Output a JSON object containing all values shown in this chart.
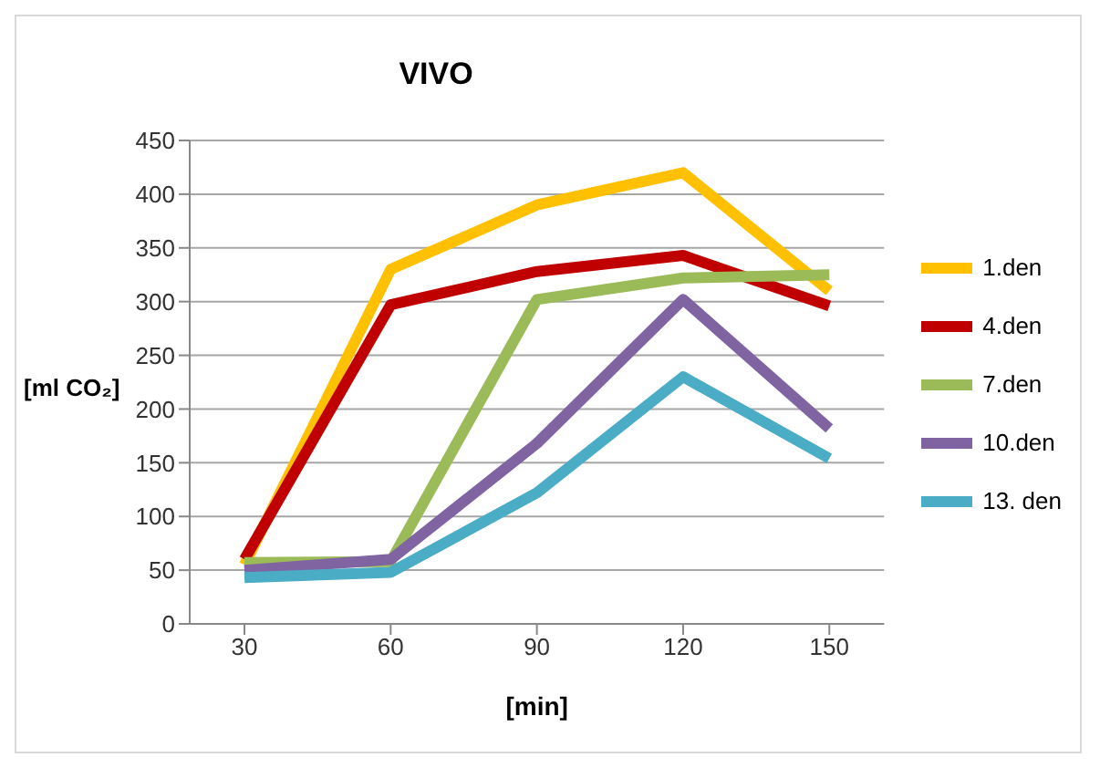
{
  "chart_data": {
    "type": "line",
    "title": "VIVO",
    "xlabel": "[min]",
    "ylabel": "[ml CO₂]",
    "categories": [
      "30",
      "60",
      "90",
      "120",
      "150"
    ],
    "series": [
      {
        "name": "1.den",
        "color": "#ffc000",
        "values": [
          55,
          330,
          390,
          420,
          310
        ]
      },
      {
        "name": "4.den",
        "color": "#c00000",
        "values": [
          60,
          297,
          328,
          343,
          296
        ]
      },
      {
        "name": "7.den",
        "color": "#9bbb59",
        "values": [
          57,
          58,
          302,
          322,
          325
        ]
      },
      {
        "name": "10.den",
        "color": "#8064a2",
        "values": [
          50,
          60,
          168,
          302,
          182
        ]
      },
      {
        "name": "13. den",
        "color": "#4bacc6",
        "values": [
          43,
          48,
          122,
          230,
          154
        ]
      }
    ],
    "ylim": [
      0,
      450
    ],
    "yticks": [
      0,
      50,
      100,
      150,
      200,
      250,
      300,
      350,
      400,
      450
    ],
    "grid": "y",
    "legend": "right",
    "marker": "none",
    "line_style": "solid"
  }
}
